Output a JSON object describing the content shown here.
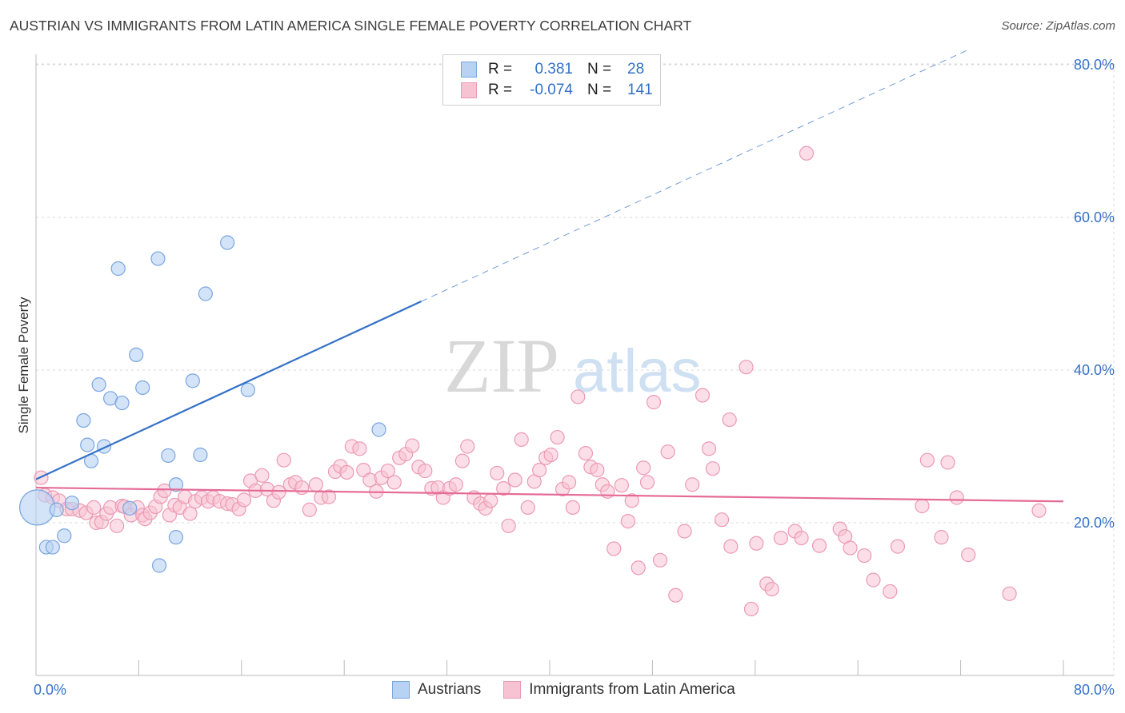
{
  "title": "AUSTRIAN VS IMMIGRANTS FROM LATIN AMERICA SINGLE FEMALE POVERTY CORRELATION CHART",
  "source": "Source: ZipAtlas.com",
  "watermark": {
    "zip": "ZIP",
    "atlas": "atlas"
  },
  "legend": {
    "austrians": {
      "r_label": "R =",
      "r_value": "0.381",
      "n_label": "N =",
      "n_value": "28"
    },
    "immigrants": {
      "r_label": "R =",
      "r_value": "-0.074",
      "n_label": "N =",
      "n_value": "141"
    }
  },
  "colors": {
    "blue_fill": "#b7d2f3",
    "blue_stroke": "#7aa5df",
    "blue_line": "#3471c7",
    "pink_fill": "#f7c3d3",
    "pink_stroke": "#ec9ab4",
    "pink_line": "#e56b97",
    "tick_label": "#3471c7",
    "grid": "#d9d9d9"
  },
  "chart_data": {
    "type": "scatter",
    "title": "AUSTRIAN VS IMMIGRANTS FROM LATIN AMERICA SINGLE FEMALE POVERTY CORRELATION CHART",
    "xlabel": "",
    "ylabel": "Single Female Poverty",
    "xlim": [
      0,
      80
    ],
    "ylim": [
      0,
      82
    ],
    "x_tick_labels": [
      "0.0%",
      "80.0%"
    ],
    "y_ticks": [
      20,
      40,
      60,
      80
    ],
    "y_tick_labels": [
      "20.0%",
      "40.0%",
      "60.0%",
      "80.0%"
    ],
    "grid": true,
    "legend_position": "bottom",
    "series": [
      {
        "name": "Austrians",
        "r": 0.381,
        "n": 28,
        "trend": {
          "x0": 0,
          "y0": 25.7,
          "x1": 30,
          "y1": 49.0,
          "dashed_to_x": 80,
          "dashed_to_y": 87.7
        },
        "points": [
          [
            0.1,
            22.0
          ],
          [
            0.8,
            16.8
          ],
          [
            1.3,
            16.8
          ],
          [
            1.6,
            21.7
          ],
          [
            2.2,
            18.3
          ],
          [
            2.8,
            22.6
          ],
          [
            3.7,
            33.4
          ],
          [
            4.0,
            30.2
          ],
          [
            4.3,
            28.1
          ],
          [
            4.9,
            38.1
          ],
          [
            5.3,
            30.0
          ],
          [
            5.8,
            36.3
          ],
          [
            6.4,
            53.3
          ],
          [
            6.7,
            35.7
          ],
          [
            7.3,
            21.9
          ],
          [
            7.8,
            42.0
          ],
          [
            8.3,
            37.7
          ],
          [
            9.5,
            54.6
          ],
          [
            9.6,
            14.4
          ],
          [
            10.3,
            28.8
          ],
          [
            10.9,
            25.0
          ],
          [
            10.9,
            18.1
          ],
          [
            12.2,
            38.6
          ],
          [
            12.8,
            28.9
          ],
          [
            13.2,
            50.0
          ],
          [
            14.9,
            56.7
          ],
          [
            16.5,
            37.4
          ],
          [
            26.7,
            32.2
          ]
        ]
      },
      {
        "name": "Immigrants from Latin America",
        "r": -0.074,
        "n": 141,
        "trend": {
          "x0": 0,
          "y0": 24.6,
          "x1": 80,
          "y1": 22.8
        },
        "points": [
          [
            0.4,
            25.9
          ],
          [
            0.7,
            23.6
          ],
          [
            1.3,
            23.3
          ],
          [
            1.8,
            22.9
          ],
          [
            2.4,
            21.8
          ],
          [
            2.8,
            21.8
          ],
          [
            3.4,
            21.6
          ],
          [
            3.9,
            21.3
          ],
          [
            4.5,
            22.0
          ],
          [
            4.7,
            20.0
          ],
          [
            5.1,
            20.1
          ],
          [
            5.5,
            21.2
          ],
          [
            5.8,
            22.0
          ],
          [
            6.3,
            19.6
          ],
          [
            6.7,
            22.2
          ],
          [
            6.9,
            22.1
          ],
          [
            7.4,
            21.0
          ],
          [
            7.9,
            22.0
          ],
          [
            8.3,
            21.0
          ],
          [
            8.5,
            20.5
          ],
          [
            8.9,
            21.3
          ],
          [
            9.3,
            22.1
          ],
          [
            9.7,
            23.4
          ],
          [
            10.0,
            24.2
          ],
          [
            10.4,
            21.0
          ],
          [
            10.8,
            22.3
          ],
          [
            11.2,
            22.0
          ],
          [
            11.6,
            23.4
          ],
          [
            12.0,
            21.2
          ],
          [
            12.4,
            22.8
          ],
          [
            12.9,
            23.3
          ],
          [
            13.4,
            22.8
          ],
          [
            13.8,
            23.3
          ],
          [
            14.3,
            22.8
          ],
          [
            14.9,
            22.5
          ],
          [
            15.3,
            22.4
          ],
          [
            15.8,
            21.8
          ],
          [
            16.2,
            23.0
          ],
          [
            16.7,
            25.5
          ],
          [
            17.1,
            24.2
          ],
          [
            17.6,
            26.2
          ],
          [
            18.0,
            24.4
          ],
          [
            18.5,
            22.9
          ],
          [
            18.9,
            24.0
          ],
          [
            19.3,
            28.2
          ],
          [
            19.8,
            25.0
          ],
          [
            20.2,
            25.3
          ],
          [
            20.7,
            24.6
          ],
          [
            21.3,
            21.7
          ],
          [
            21.8,
            25.0
          ],
          [
            22.2,
            23.3
          ],
          [
            22.8,
            23.4
          ],
          [
            23.3,
            26.7
          ],
          [
            23.7,
            27.4
          ],
          [
            24.2,
            26.6
          ],
          [
            24.6,
            30.0
          ],
          [
            25.2,
            29.7
          ],
          [
            25.5,
            26.9
          ],
          [
            26.0,
            25.6
          ],
          [
            26.5,
            24.1
          ],
          [
            26.9,
            25.9
          ],
          [
            27.4,
            26.8
          ],
          [
            27.9,
            25.3
          ],
          [
            28.3,
            28.5
          ],
          [
            28.8,
            29.0
          ],
          [
            29.3,
            30.1
          ],
          [
            29.8,
            27.3
          ],
          [
            30.3,
            26.8
          ],
          [
            30.8,
            24.5
          ],
          [
            31.3,
            24.6
          ],
          [
            31.7,
            23.3
          ],
          [
            32.2,
            24.5
          ],
          [
            32.7,
            25.0
          ],
          [
            33.2,
            28.1
          ],
          [
            33.6,
            30.0
          ],
          [
            34.1,
            23.3
          ],
          [
            34.6,
            22.5
          ],
          [
            35.0,
            21.9
          ],
          [
            35.4,
            22.9
          ],
          [
            35.9,
            26.5
          ],
          [
            36.4,
            24.5
          ],
          [
            36.8,
            19.6
          ],
          [
            37.3,
            25.6
          ],
          [
            37.8,
            30.9
          ],
          [
            38.3,
            22.0
          ],
          [
            38.8,
            25.4
          ],
          [
            39.2,
            26.9
          ],
          [
            39.7,
            28.5
          ],
          [
            40.1,
            28.9
          ],
          [
            40.6,
            31.2
          ],
          [
            41.0,
            24.4
          ],
          [
            41.5,
            25.3
          ],
          [
            41.8,
            22.0
          ],
          [
            42.2,
            36.5
          ],
          [
            42.8,
            29.1
          ],
          [
            43.2,
            27.3
          ],
          [
            43.7,
            26.9
          ],
          [
            44.1,
            25.0
          ],
          [
            44.5,
            24.1
          ],
          [
            45.0,
            16.6
          ],
          [
            45.6,
            24.9
          ],
          [
            46.1,
            20.2
          ],
          [
            46.4,
            22.9
          ],
          [
            46.9,
            14.1
          ],
          [
            47.3,
            27.2
          ],
          [
            47.6,
            25.3
          ],
          [
            48.1,
            35.8
          ],
          [
            48.6,
            15.1
          ],
          [
            49.2,
            29.3
          ],
          [
            49.8,
            10.5
          ],
          [
            50.5,
            18.9
          ],
          [
            51.1,
            25.0
          ],
          [
            51.9,
            36.7
          ],
          [
            52.4,
            29.7
          ],
          [
            52.7,
            27.1
          ],
          [
            53.4,
            20.4
          ],
          [
            54.0,
            33.5
          ],
          [
            54.1,
            16.9
          ],
          [
            55.3,
            40.4
          ],
          [
            55.7,
            8.7
          ],
          [
            56.1,
            17.3
          ],
          [
            56.9,
            12.0
          ],
          [
            57.3,
            11.3
          ],
          [
            58.0,
            18.0
          ],
          [
            59.1,
            18.9
          ],
          [
            59.6,
            18.0
          ],
          [
            60.0,
            68.4
          ],
          [
            61.0,
            17.0
          ],
          [
            62.6,
            19.2
          ],
          [
            63.0,
            18.2
          ],
          [
            63.4,
            16.7
          ],
          [
            64.5,
            15.7
          ],
          [
            65.2,
            12.5
          ],
          [
            66.5,
            11.0
          ],
          [
            67.1,
            16.9
          ],
          [
            69.0,
            22.2
          ],
          [
            70.5,
            18.1
          ],
          [
            71.0,
            27.9
          ],
          [
            71.7,
            23.3
          ],
          [
            72.6,
            15.8
          ],
          [
            75.8,
            10.7
          ],
          [
            78.1,
            21.6
          ],
          [
            69.4,
            28.2
          ]
        ]
      }
    ]
  },
  "bottom_legend": {
    "austrians": "Austrians",
    "immigrants": "Immigrants from Latin America"
  }
}
